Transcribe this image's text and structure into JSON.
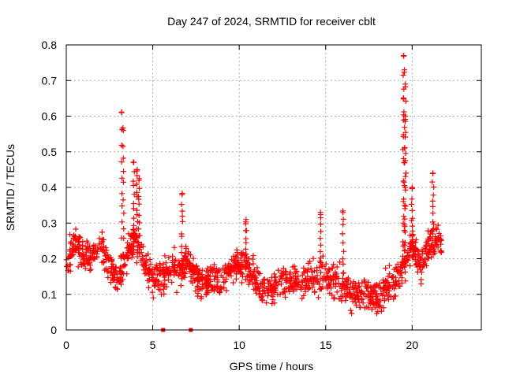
{
  "chart_data": {
    "type": "scatter",
    "title": "Day 247 of 2024, SRMTID for receiver cblt",
    "xlabel": "GPS time / hours",
    "ylabel": "SRMTID / TECUs",
    "xlim": [
      0,
      24
    ],
    "ylim": [
      0,
      0.8
    ],
    "xticks": [
      0,
      5,
      10,
      15,
      20
    ],
    "yticks": [
      0,
      0.1,
      0.2,
      0.3,
      0.4,
      0.5,
      0.6,
      0.7,
      0.8
    ],
    "xtick_labels": [
      "0",
      "5",
      "10",
      "15",
      "20"
    ],
    "ytick_labels": [
      "0",
      "0.1",
      "0.2",
      "0.3",
      "0.4",
      "0.5",
      "0.6",
      "0.7",
      "0.8"
    ],
    "grid": true,
    "marker": "plus",
    "color": "#ff0000",
    "series": [
      {
        "name": "SRMTID",
        "x_range": [
          0.0,
          21.7
        ],
        "profile": [
          [
            0.0,
            0.2
          ],
          [
            0.5,
            0.24
          ],
          [
            1.0,
            0.21
          ],
          [
            1.5,
            0.2
          ],
          [
            2.0,
            0.24
          ],
          [
            2.5,
            0.18
          ],
          [
            3.0,
            0.14
          ],
          [
            3.5,
            0.2
          ],
          [
            4.0,
            0.26
          ],
          [
            4.5,
            0.18
          ],
          [
            5.0,
            0.15
          ],
          [
            5.5,
            0.15
          ],
          [
            6.0,
            0.17
          ],
          [
            6.5,
            0.16
          ],
          [
            7.0,
            0.2
          ],
          [
            7.5,
            0.15
          ],
          [
            8.0,
            0.13
          ],
          [
            8.5,
            0.15
          ],
          [
            9.0,
            0.15
          ],
          [
            9.5,
            0.17
          ],
          [
            10.0,
            0.18
          ],
          [
            10.5,
            0.17
          ],
          [
            11.0,
            0.13
          ],
          [
            11.5,
            0.12
          ],
          [
            12.0,
            0.12
          ],
          [
            12.5,
            0.14
          ],
          [
            13.0,
            0.13
          ],
          [
            13.5,
            0.14
          ],
          [
            14.0,
            0.14
          ],
          [
            14.5,
            0.15
          ],
          [
            15.0,
            0.14
          ],
          [
            15.5,
            0.14
          ],
          [
            16.0,
            0.12
          ],
          [
            16.5,
            0.1
          ],
          [
            17.0,
            0.1
          ],
          [
            17.5,
            0.1
          ],
          [
            18.0,
            0.09
          ],
          [
            18.5,
            0.12
          ],
          [
            19.0,
            0.13
          ],
          [
            19.5,
            0.18
          ],
          [
            20.0,
            0.24
          ],
          [
            20.5,
            0.18
          ],
          [
            21.0,
            0.24
          ],
          [
            21.5,
            0.25
          ],
          [
            21.7,
            0.24
          ]
        ],
        "peaks": [
          {
            "x": 3.2,
            "y": 0.61
          },
          {
            "x": 3.3,
            "y": 0.56
          },
          {
            "x": 3.9,
            "y": 0.47
          },
          {
            "x": 4.1,
            "y": 0.45
          },
          {
            "x": 4.2,
            "y": 0.42
          },
          {
            "x": 6.7,
            "y": 0.38
          },
          {
            "x": 19.5,
            "y": 0.77
          },
          {
            "x": 19.55,
            "y": 0.73
          },
          {
            "x": 19.6,
            "y": 0.69
          },
          {
            "x": 19.5,
            "y": 0.65
          },
          {
            "x": 19.6,
            "y": 0.6
          },
          {
            "x": 20.0,
            "y": 0.4
          },
          {
            "x": 21.2,
            "y": 0.44
          },
          {
            "x": 14.7,
            "y": 0.33
          },
          {
            "x": 16.0,
            "y": 0.33
          },
          {
            "x": 10.4,
            "y": 0.31
          }
        ]
      }
    ],
    "baseline_markers": [
      {
        "x": 5.6,
        "y": 0.0
      },
      {
        "x": 7.2,
        "y": 0.0
      }
    ]
  }
}
